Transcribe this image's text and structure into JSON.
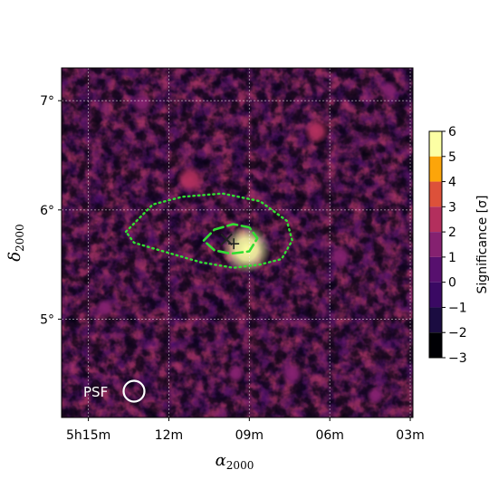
{
  "chart_data": {
    "type": "heatmap",
    "title": "",
    "xlabel": {
      "symbol": "α",
      "subscript": "2000"
    },
    "ylabel": {
      "symbol": "δ",
      "subscript": "2000"
    },
    "x_ticks": [
      {
        "value": 15,
        "label": "5h15m"
      },
      {
        "value": 12,
        "label": "12m"
      },
      {
        "value": 9,
        "label": "09m"
      },
      {
        "value": 6,
        "label": "06m"
      },
      {
        "value": 3,
        "label": "03m"
      }
    ],
    "y_ticks": [
      {
        "value": 5,
        "label": "5°"
      },
      {
        "value": 6,
        "label": "6°"
      },
      {
        "value": 7,
        "label": "7°"
      }
    ],
    "xlim": [
      16.0,
      2.9
    ],
    "ylim": [
      4.1,
      7.3
    ],
    "grid": true,
    "colorbar": {
      "label": "Significance [σ]",
      "range": [
        -3,
        6
      ],
      "ticks": [
        {
          "value": 6,
          "label": "6"
        },
        {
          "value": 5,
          "label": "5"
        },
        {
          "value": 4,
          "label": "4"
        },
        {
          "value": 3,
          "label": "3"
        },
        {
          "value": 2,
          "label": "2"
        },
        {
          "value": 1,
          "label": "1"
        },
        {
          "value": 0,
          "label": "0"
        },
        {
          "value": -1,
          "label": "−1"
        },
        {
          "value": -2,
          "label": "−2"
        },
        {
          "value": -3,
          "label": "−3"
        }
      ],
      "bands": [
        {
          "from": 5,
          "to": 6,
          "color": "#fcffa4"
        },
        {
          "from": 4,
          "to": 5,
          "color": "#fca50a"
        },
        {
          "from": 3,
          "to": 4,
          "color": "#dd513a"
        },
        {
          "from": 2,
          "to": 3,
          "color": "#b32f5d"
        },
        {
          "from": 1,
          "to": 2,
          "color": "#852170"
        },
        {
          "from": 0,
          "to": 1,
          "color": "#57106e"
        },
        {
          "from": -1,
          "to": 0,
          "color": "#3a0963"
        },
        {
          "from": -2,
          "to": -1,
          "color": "#1b0c41"
        },
        {
          "from": -3,
          "to": -2,
          "color": "#000004"
        }
      ]
    },
    "hotspots": [
      {
        "ra": 9.1,
        "dec": 5.64,
        "sigma": 5.2
      },
      {
        "ra": 11.2,
        "dec": 6.28,
        "sigma": 2.4
      },
      {
        "ra": 6.5,
        "dec": 6.72,
        "sigma": 2.0
      },
      {
        "ra": 13.0,
        "dec": 6.98,
        "sigma": 1.6
      },
      {
        "ra": 5.6,
        "dec": 5.58,
        "sigma": 1.5
      },
      {
        "ra": 7.4,
        "dec": 4.5,
        "sigma": 1.6
      },
      {
        "ra": 3.8,
        "dec": 7.1,
        "sigma": 1.2
      },
      {
        "ra": 14.4,
        "dec": 5.1,
        "sigma": 1.3
      },
      {
        "ra": 9.5,
        "dec": 4.5,
        "sigma": 1.1
      },
      {
        "ra": 4.3,
        "dec": 4.3,
        "sigma": 1.0
      }
    ],
    "contours": [
      {
        "style": "dotted",
        "color": "#33dd33",
        "points": [
          [
            13.6,
            5.8
          ],
          [
            12.6,
            6.05
          ],
          [
            11.5,
            6.12
          ],
          [
            10.0,
            6.15
          ],
          [
            8.6,
            6.08
          ],
          [
            7.6,
            5.9
          ],
          [
            7.4,
            5.72
          ],
          [
            7.8,
            5.55
          ],
          [
            8.6,
            5.5
          ],
          [
            9.6,
            5.47
          ],
          [
            10.8,
            5.52
          ],
          [
            12.2,
            5.62
          ],
          [
            13.3,
            5.7
          ]
        ]
      },
      {
        "style": "dashed",
        "color": "#33dd33",
        "points": [
          [
            10.7,
            5.72
          ],
          [
            10.3,
            5.82
          ],
          [
            9.6,
            5.87
          ],
          [
            9.0,
            5.84
          ],
          [
            8.7,
            5.74
          ],
          [
            9.0,
            5.62
          ],
          [
            9.7,
            5.6
          ],
          [
            10.3,
            5.63
          ]
        ]
      }
    ],
    "markers": [
      {
        "type": "x",
        "ra": 9.85,
        "dec": 5.73,
        "color": "#222222"
      },
      {
        "type": "plus",
        "ra": 9.58,
        "dec": 5.69,
        "color": "#222222"
      }
    ],
    "psf": {
      "label": "PSF",
      "radius_deg": 0.1
    }
  }
}
